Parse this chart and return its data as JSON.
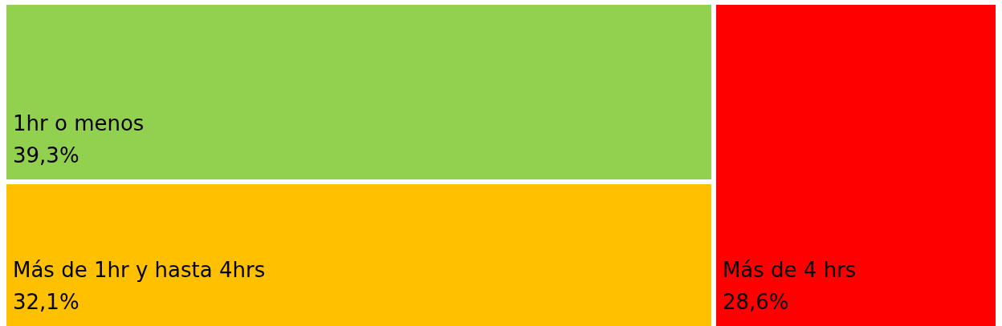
{
  "chart_data": {
    "type": "other",
    "categories": [
      "1hr o menos",
      "Más de 1hr y hasta 4hrs",
      "Más de 4 hrs"
    ],
    "values": [
      39.3,
      32.1,
      28.6
    ],
    "value_labels": [
      "39,3%",
      "32,1%",
      "28,6%"
    ],
    "colors": [
      "#92d050",
      "#ffc000",
      "#ff0000"
    ]
  }
}
